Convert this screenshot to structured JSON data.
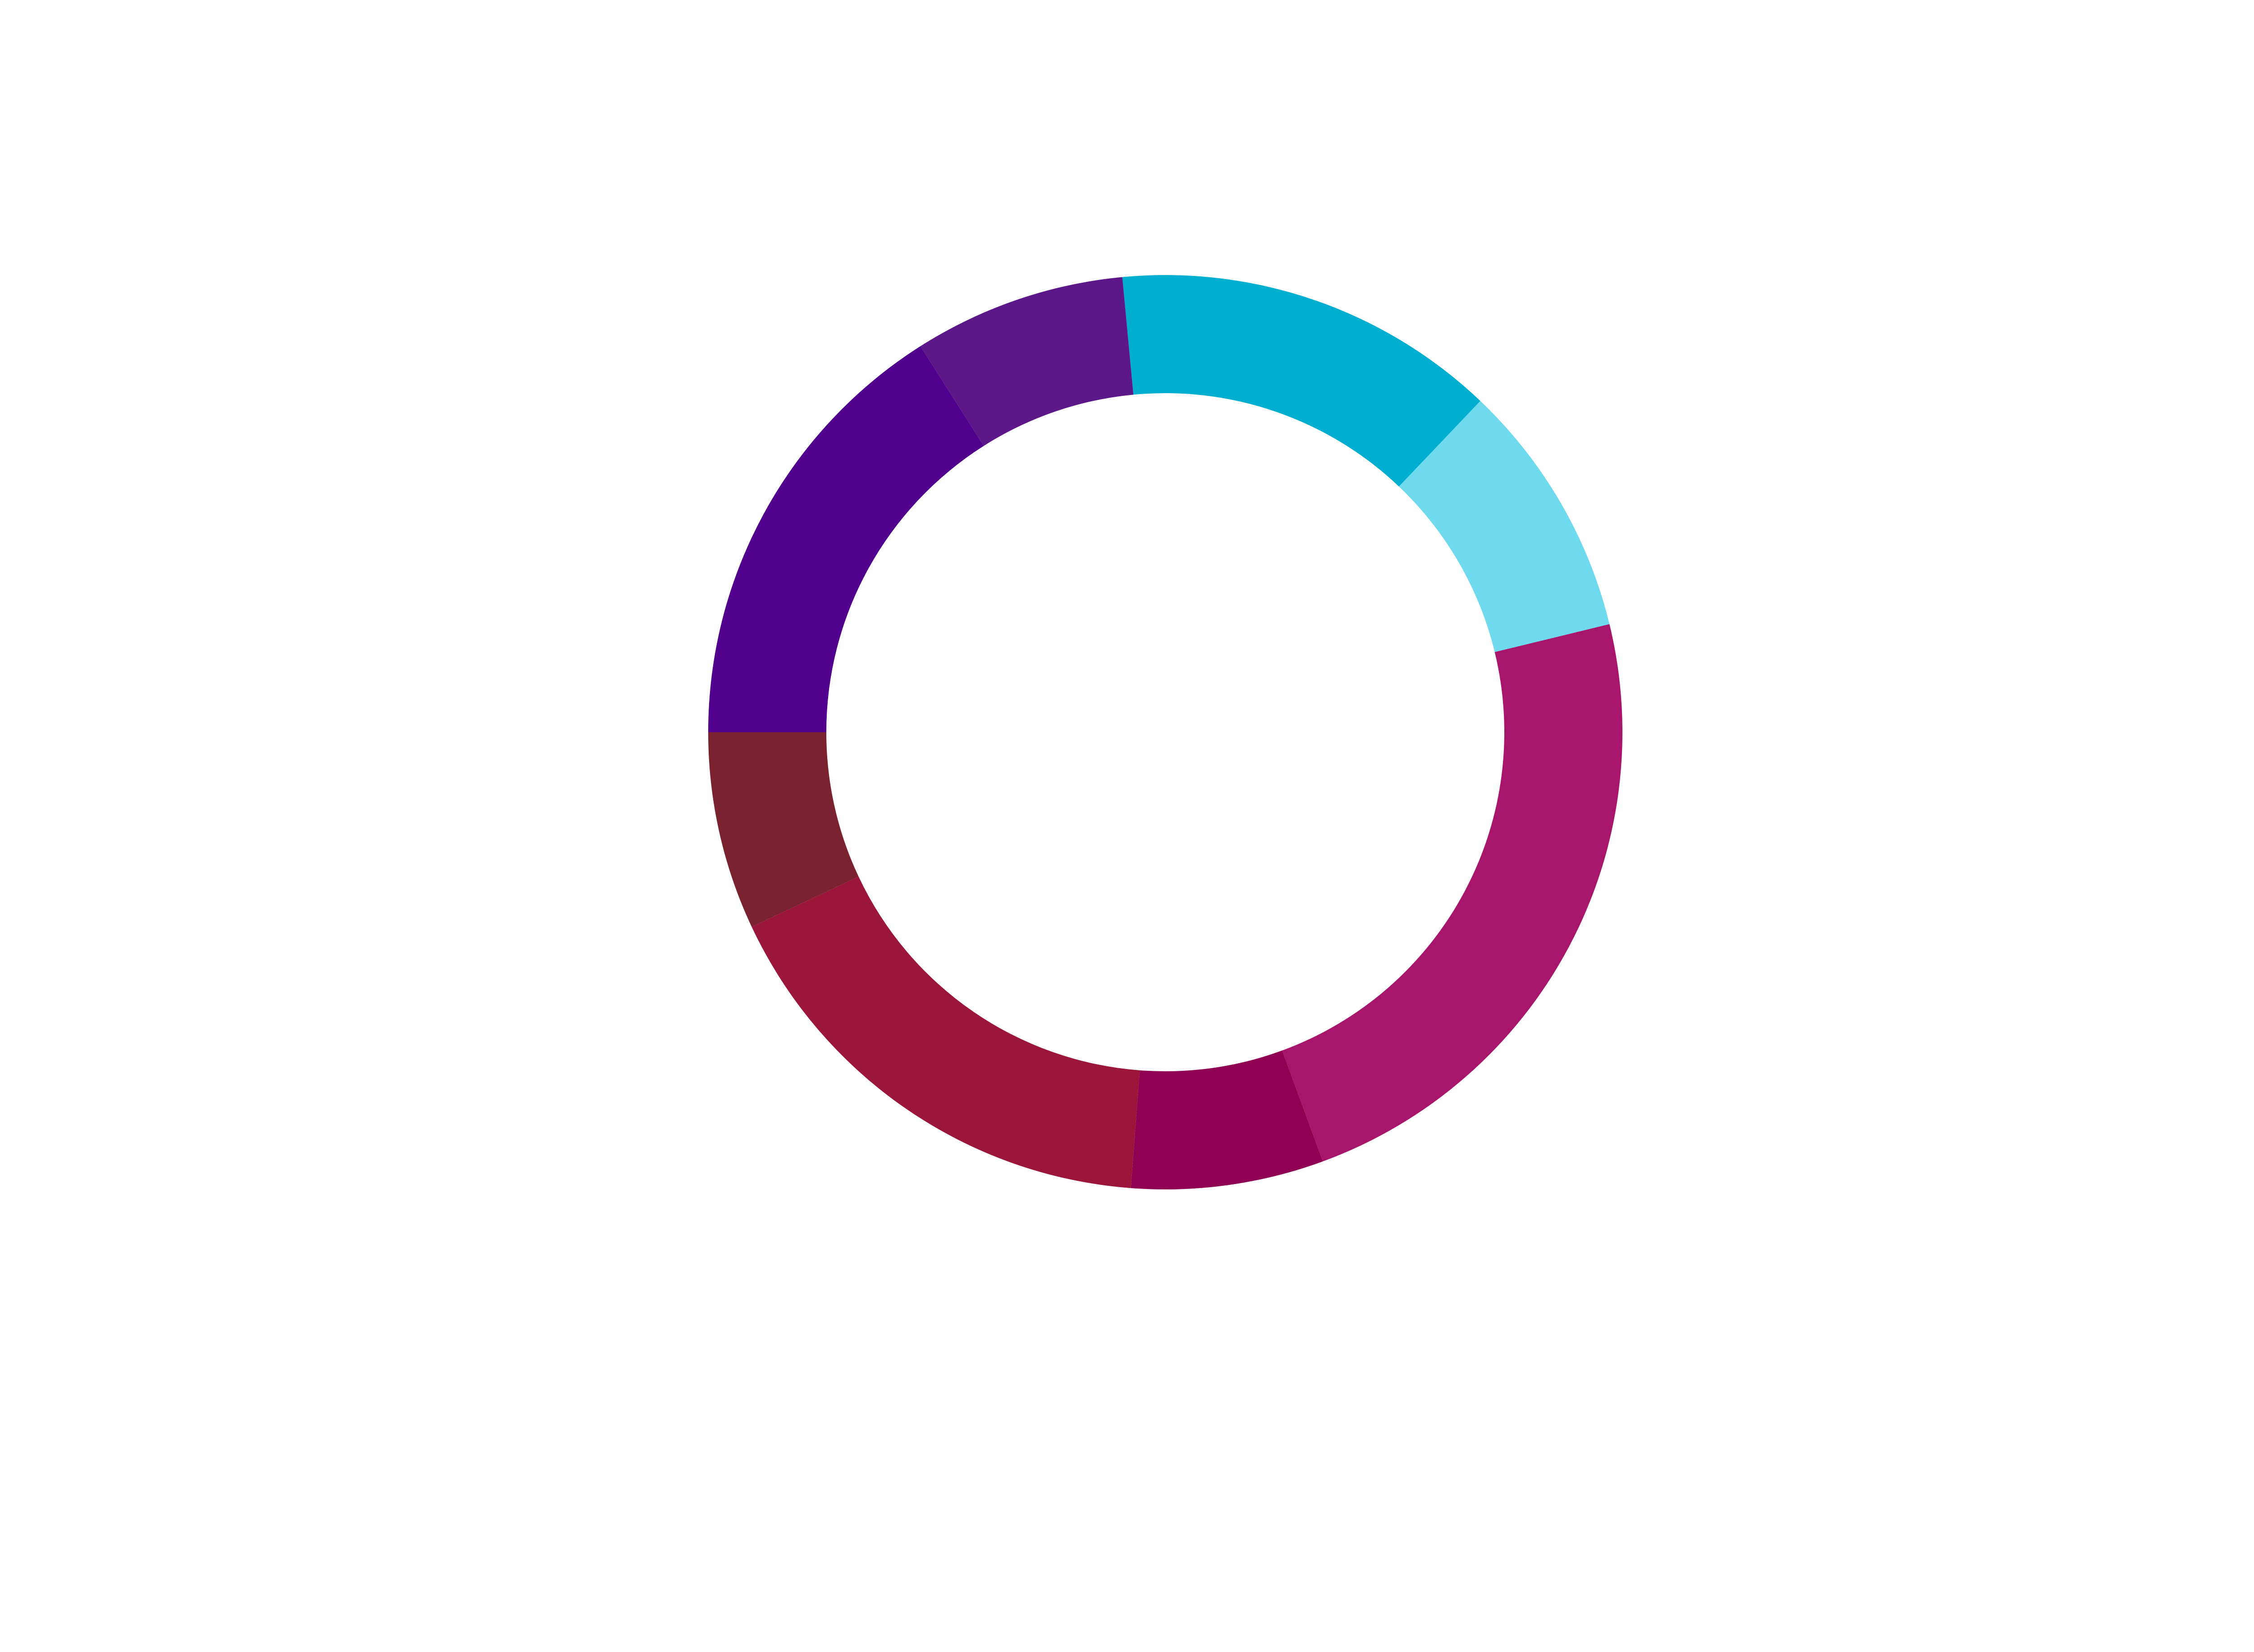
{
  "chart_data": {
    "type": "donut",
    "values": [
      7.0,
      16.8,
      6.8,
      23.2,
      9.1,
      13.6,
      7.5,
      16.0
    ],
    "colors": [
      "#7b2230",
      "#9c163c",
      "#8f0052",
      "#a8156c",
      "#6fdaee",
      "#00aecf",
      "#5c1888",
      "#50008c"
    ]
  }
}
